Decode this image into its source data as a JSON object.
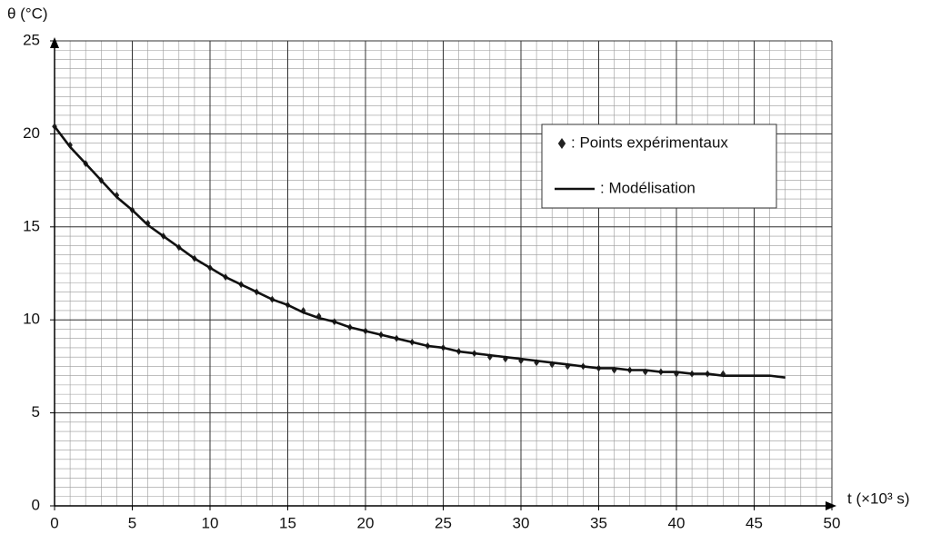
{
  "chart_data": {
    "type": "line",
    "ylabel": "θ (°C)",
    "xlabel": "t (×10³ s)",
    "xlim": [
      0,
      50
    ],
    "xticks": [
      0,
      5,
      10,
      15,
      20,
      25,
      30,
      35,
      40,
      45,
      50
    ],
    "ylim": [
      0,
      25
    ],
    "yticks": [
      0,
      5,
      10,
      15,
      20,
      25
    ],
    "grid": true,
    "x_minor_step": 1,
    "y_minor_step": 0.5,
    "legend": "upper right",
    "series": [
      {
        "name": ": Points expérimentaux",
        "color": "#222222",
        "style": "markers",
        "x": [
          0,
          1,
          2,
          3,
          4,
          5,
          6,
          7,
          8,
          9,
          10,
          11,
          12,
          13,
          14,
          15,
          16,
          17,
          18,
          19,
          20,
          21,
          22,
          23,
          24,
          25,
          26,
          27,
          28,
          29,
          30,
          31,
          32,
          33,
          34,
          35,
          36,
          37,
          38,
          39,
          40,
          41,
          42,
          43
        ],
        "values": [
          20.4,
          19.4,
          18.4,
          17.5,
          16.7,
          15.9,
          15.2,
          14.5,
          13.9,
          13.3,
          12.8,
          12.3,
          11.9,
          11.5,
          11.1,
          10.8,
          10.5,
          10.2,
          9.9,
          9.6,
          9.4,
          9.2,
          9.0,
          8.8,
          8.6,
          8.5,
          8.3,
          8.2,
          8.0,
          7.9,
          7.8,
          7.7,
          7.6,
          7.5,
          7.5,
          7.4,
          7.3,
          7.3,
          7.2,
          7.2,
          7.1,
          7.1,
          7.1,
          7.1
        ]
      },
      {
        "name": ": Modélisation",
        "color": "#111111",
        "style": "line",
        "x": [
          0,
          1,
          2,
          3,
          4,
          5,
          6,
          7,
          8,
          9,
          10,
          11,
          12,
          13,
          14,
          15,
          16,
          17,
          18,
          19,
          20,
          21,
          22,
          23,
          24,
          25,
          26,
          27,
          28,
          29,
          30,
          31,
          32,
          33,
          34,
          35,
          36,
          37,
          38,
          39,
          40,
          41,
          42,
          43,
          44,
          45,
          46,
          47
        ],
        "values": [
          20.4,
          19.3,
          18.4,
          17.5,
          16.6,
          15.9,
          15.1,
          14.5,
          13.9,
          13.3,
          12.8,
          12.3,
          11.9,
          11.5,
          11.1,
          10.8,
          10.4,
          10.1,
          9.9,
          9.6,
          9.4,
          9.2,
          9.0,
          8.8,
          8.6,
          8.5,
          8.3,
          8.2,
          8.1,
          8.0,
          7.9,
          7.8,
          7.7,
          7.6,
          7.5,
          7.4,
          7.4,
          7.3,
          7.3,
          7.2,
          7.2,
          7.1,
          7.1,
          7.0,
          7.0,
          7.0,
          7.0,
          6.9
        ]
      }
    ]
  }
}
